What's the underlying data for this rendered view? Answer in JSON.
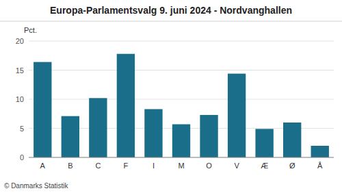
{
  "chart_data": {
    "type": "bar",
    "title": "Europa-Parlamentsvalg 9. juni 2024 - Nordvanghallen",
    "y_label": "Pct.",
    "footer": "© Danmarks Statistik",
    "categories": [
      "A",
      "B",
      "C",
      "F",
      "I",
      "M",
      "O",
      "V",
      "Æ",
      "Ø",
      "Å"
    ],
    "values": [
      16.4,
      7.1,
      10.2,
      17.8,
      8.3,
      5.7,
      7.3,
      14.4,
      4.9,
      6.0,
      2.0
    ],
    "color": "#1a6e8a",
    "ylim": [
      0,
      20
    ],
    "yticks": [
      0,
      5,
      10,
      15,
      20
    ],
    "grid": true
  }
}
